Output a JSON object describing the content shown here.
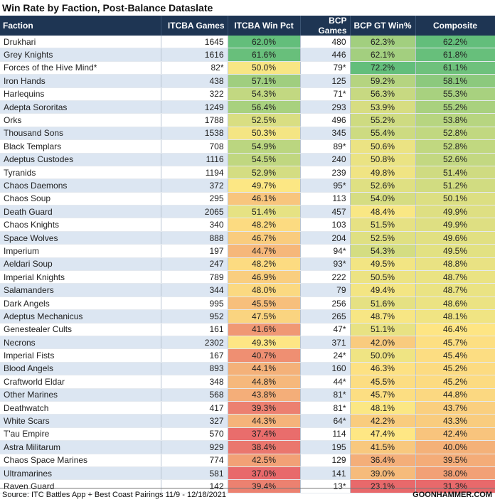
{
  "title": "Win Rate by Faction, Post-Balance Dataslate",
  "table": {
    "columns": [
      "Faction",
      "ITCBA Games",
      "ITCBA Win Pct",
      "BCP Games",
      "BCP GT Win%",
      "Composite"
    ],
    "rows": [
      [
        "Drukhari",
        1645,
        "62.0%",
        480,
        "62.3%",
        "62.2%"
      ],
      [
        "Grey Knights",
        1616,
        "61.6%",
        446,
        "62.1%",
        "61.8%"
      ],
      [
        "Forces of the Hive Mind*",
        "82*",
        "50.0%",
        "79*",
        "72.2%",
        "61.1%"
      ],
      [
        "Iron Hands",
        438,
        "57.1%",
        125,
        "59.2%",
        "58.1%"
      ],
      [
        "Harlequins",
        322,
        "54.3%",
        "71*",
        "56.3%",
        "55.3%"
      ],
      [
        "Adepta Sororitas",
        1249,
        "56.4%",
        293,
        "53.9%",
        "55.2%"
      ],
      [
        "Orks",
        1788,
        "52.5%",
        496,
        "55.2%",
        "53.8%"
      ],
      [
        "Thousand Sons",
        1538,
        "50.3%",
        345,
        "55.4%",
        "52.8%"
      ],
      [
        "Black Templars",
        708,
        "54.9%",
        "89*",
        "50.6%",
        "52.8%"
      ],
      [
        "Adeptus Custodes",
        1116,
        "54.5%",
        240,
        "50.8%",
        "52.6%"
      ],
      [
        "Tyranids",
        1194,
        "52.9%",
        239,
        "49.8%",
        "51.4%"
      ],
      [
        "Chaos Daemons",
        372,
        "49.7%",
        "95*",
        "52.6%",
        "51.2%"
      ],
      [
        "Chaos Soup",
        295,
        "46.1%",
        113,
        "54.0%",
        "50.1%"
      ],
      [
        "Death Guard",
        2065,
        "51.4%",
        457,
        "48.4%",
        "49.9%"
      ],
      [
        "Chaos Knights",
        340,
        "48.2%",
        103,
        "51.5%",
        "49.9%"
      ],
      [
        "Space Wolves",
        888,
        "46.7%",
        204,
        "52.5%",
        "49.6%"
      ],
      [
        "Imperium",
        197,
        "44.7%",
        "94*",
        "54.3%",
        "49.5%"
      ],
      [
        "Aeldari Soup",
        247,
        "48.2%",
        "93*",
        "49.5%",
        "48.8%"
      ],
      [
        "Imperial Knights",
        789,
        "46.9%",
        222,
        "50.5%",
        "48.7%"
      ],
      [
        "Salamanders",
        344,
        "48.0%",
        79,
        "49.4%",
        "48.7%"
      ],
      [
        "Dark Angels",
        995,
        "45.5%",
        256,
        "51.6%",
        "48.6%"
      ],
      [
        "Adeptus Mechanicus",
        952,
        "47.5%",
        265,
        "48.7%",
        "48.1%"
      ],
      [
        "Genestealer Cults",
        161,
        "41.6%",
        "47*",
        "51.1%",
        "46.4%"
      ],
      [
        "Necrons",
        2302,
        "49.3%",
        371,
        "42.0%",
        "45.7%"
      ],
      [
        "Imperial Fists",
        167,
        "40.7%",
        "24*",
        "50.0%",
        "45.4%"
      ],
      [
        "Blood Angels",
        893,
        "44.1%",
        160,
        "46.3%",
        "45.2%"
      ],
      [
        "Craftworld Eldar",
        348,
        "44.8%",
        "44*",
        "45.5%",
        "45.2%"
      ],
      [
        "Other Marines",
        568,
        "43.8%",
        "81*",
        "45.7%",
        "44.8%"
      ],
      [
        "Deathwatch",
        417,
        "39.3%",
        "81*",
        "48.1%",
        "43.7%"
      ],
      [
        "White Scars",
        327,
        "44.3%",
        "64*",
        "42.2%",
        "43.3%"
      ],
      [
        "T'au Empire",
        570,
        "37.4%",
        114,
        "47.4%",
        "42.4%"
      ],
      [
        "Astra Militarum",
        929,
        "38.4%",
        195,
        "41.5%",
        "40.0%"
      ],
      [
        "Chaos Space Marines",
        774,
        "42.5%",
        129,
        "36.4%",
        "39.5%"
      ],
      [
        "Ultramarines",
        581,
        "37.0%",
        141,
        "39.0%",
        "38.0%"
      ],
      [
        "Raven Guard",
        142,
        "39.4%",
        "13*",
        "23.1%",
        "31.3%"
      ]
    ]
  },
  "footer": {
    "source": "Source: ITC Battles App + Best Coast Pairings 11/9 - 12/18/2021",
    "brand": "GOONHAMMER.COM"
  }
}
